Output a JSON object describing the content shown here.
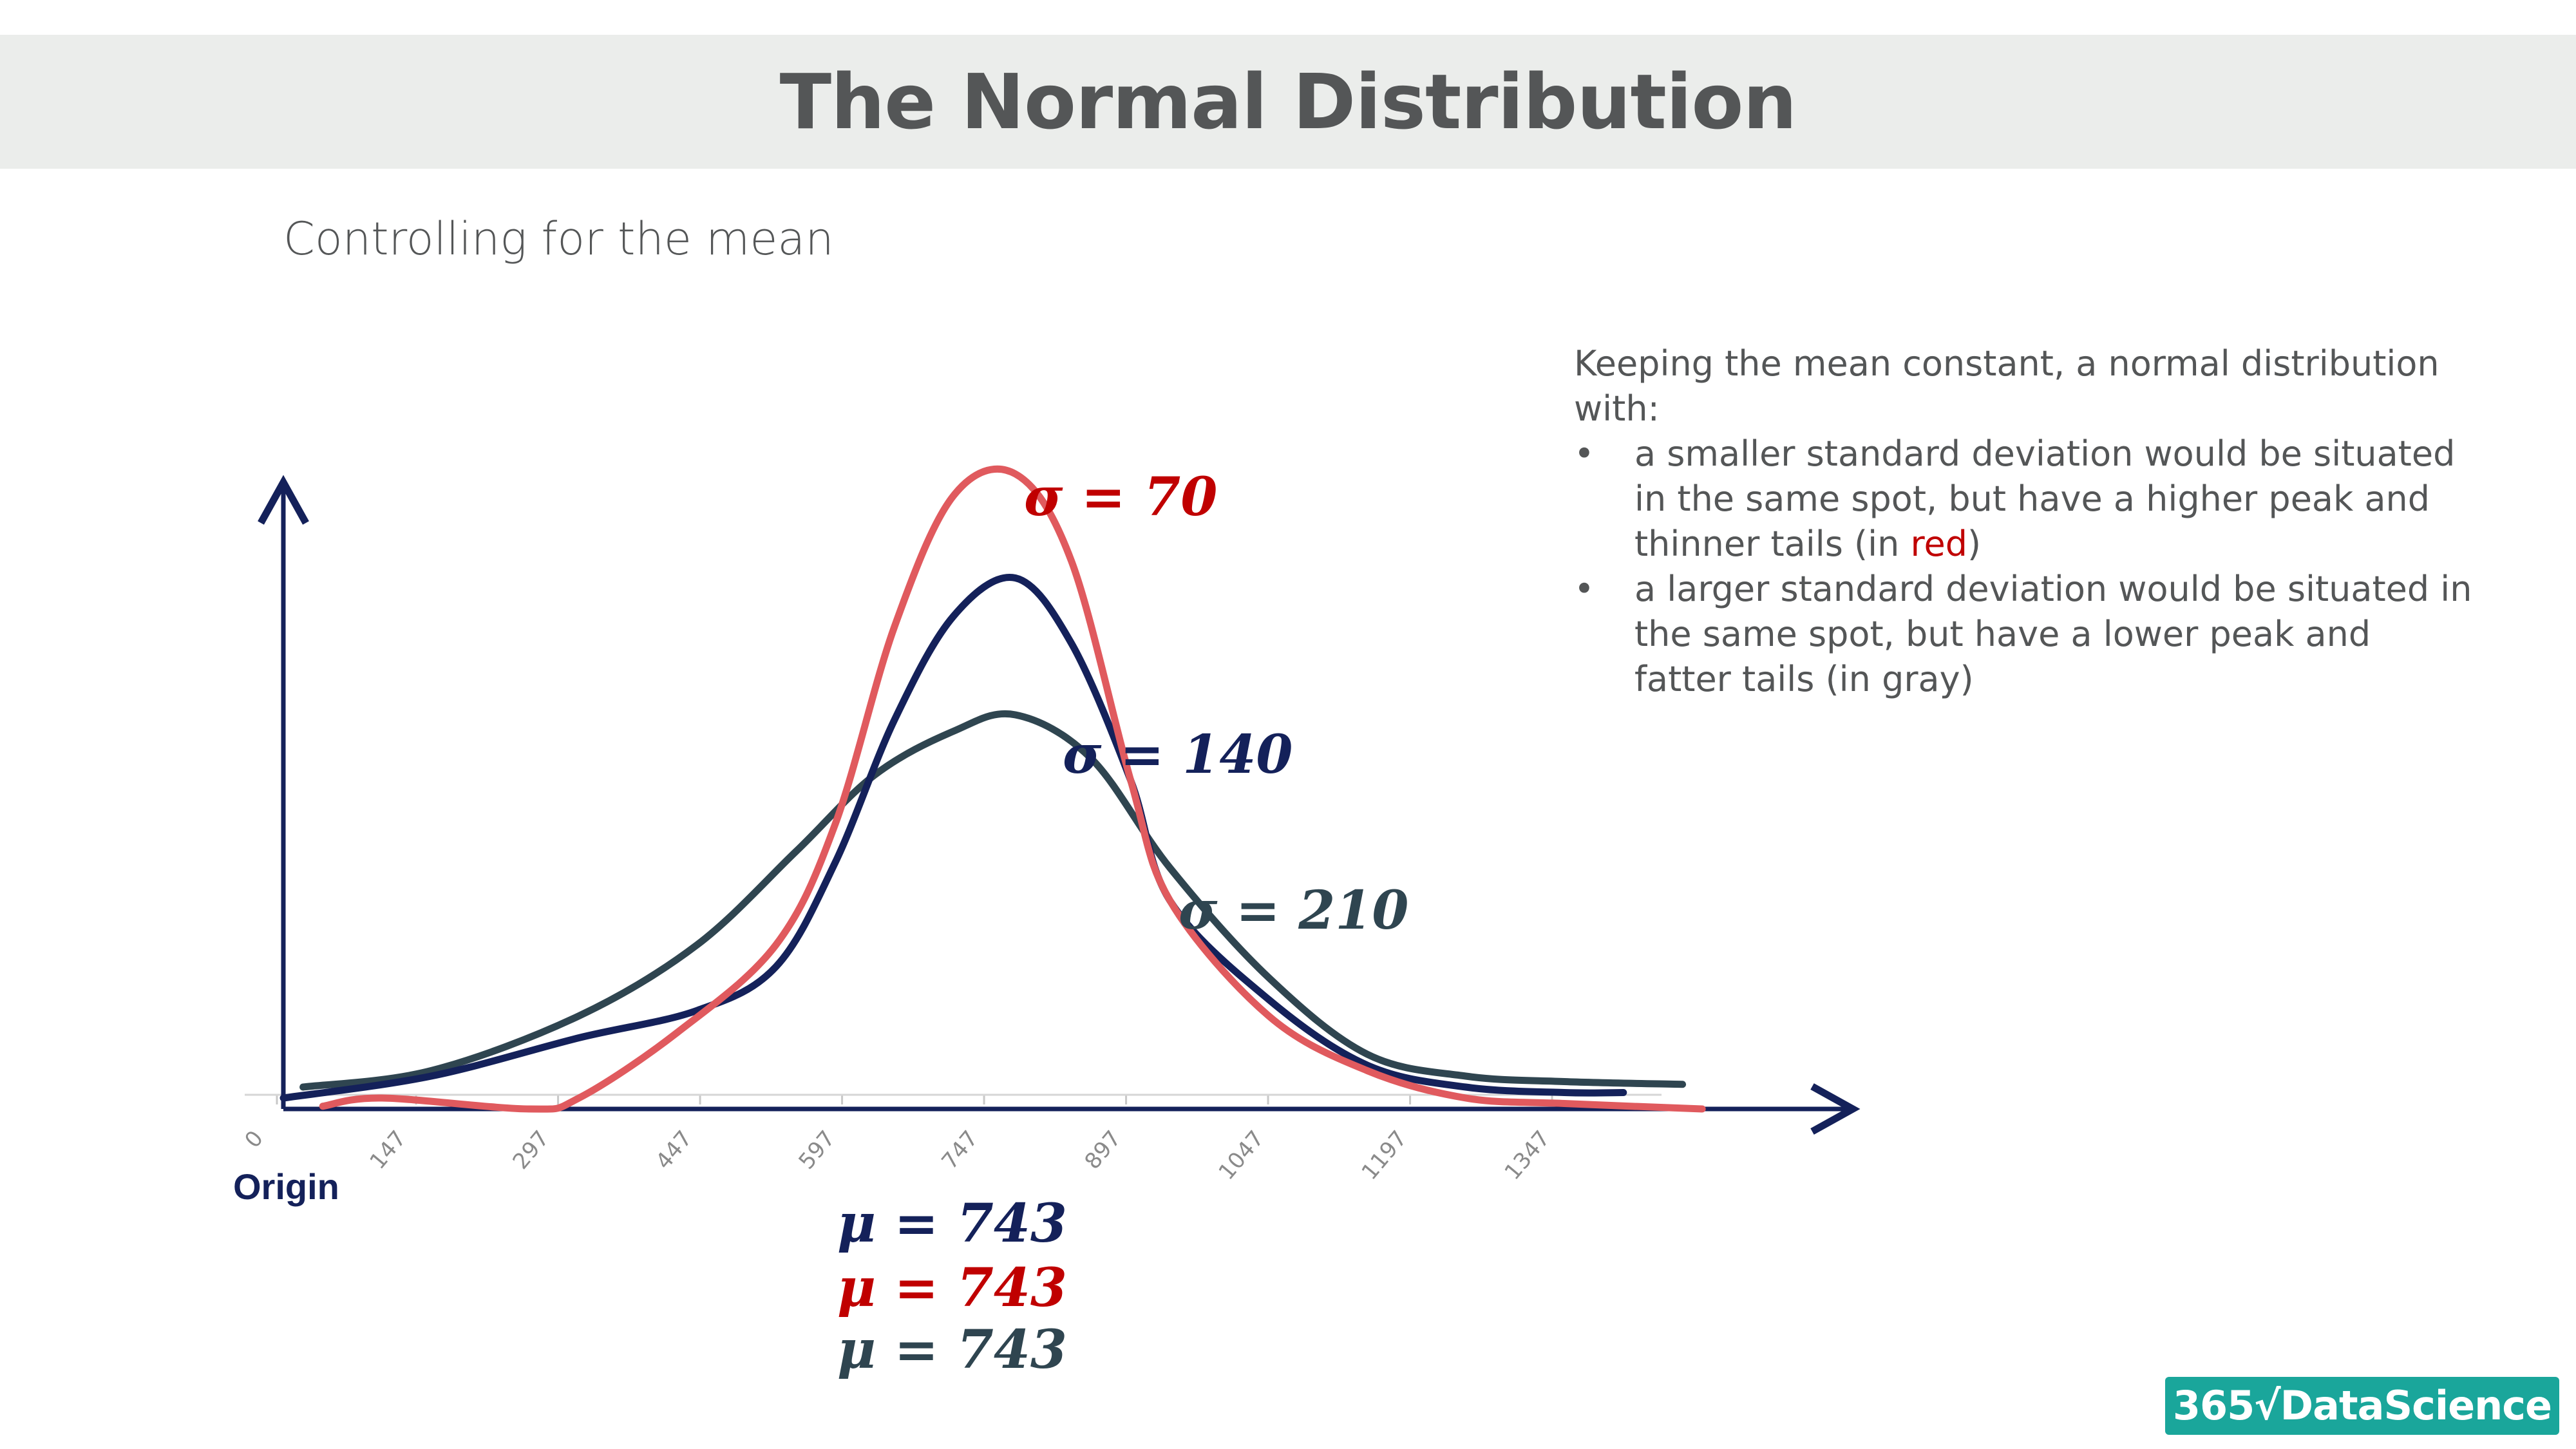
{
  "header": {
    "title": "The Normal Distribution"
  },
  "subtitle": "Controlling for the mean",
  "description": {
    "intro": "Keeping the mean constant, a normal distribution with:",
    "bullet_symbol": "•",
    "bullets": [
      {
        "text": "a smaller standard deviation would be situated in the same spot, but have a higher peak and thinner tails (in ",
        "highlight": "red",
        "after": ")"
      },
      {
        "text": "a larger standard deviation would be situated in the same spot, but have a lower peak and fatter tails (in gray)"
      }
    ]
  },
  "chart_data": {
    "type": "line",
    "xlim": [
      0,
      1460
    ],
    "ylim": [
      0,
      1
    ],
    "x_ticks": [
      0,
      147,
      297,
      447,
      597,
      747,
      897,
      1047,
      1197,
      1347
    ],
    "x_tick_labels": [
      "0",
      "147",
      "297",
      "447",
      "597",
      "747",
      "897",
      "1047",
      "1197",
      "1347"
    ],
    "origin_label": "Origin",
    "series": [
      {
        "key": "gray",
        "name": "σ = 210",
        "label": "σ = 210",
        "mean_label": "μ = 743",
        "mean": 743,
        "sd": 210,
        "color": "#2f4550",
        "x": [
          20,
          150,
          300,
          420,
          520,
          600,
          680,
          743,
          820,
          900,
          1000,
          1100,
          1200,
          1300,
          1420
        ],
        "y": [
          0.04,
          0.07,
          0.17,
          0.3,
          0.47,
          0.61,
          0.69,
          0.72,
          0.64,
          0.44,
          0.24,
          0.1,
          0.06,
          0.05,
          0.045
        ]
      },
      {
        "key": "navy",
        "name": "σ = 140",
        "label": "σ = 140",
        "mean_label": "μ = 743",
        "mean": 743,
        "sd": 140,
        "color": "#14215a",
        "x": [
          0,
          150,
          300,
          420,
          500,
          560,
          620,
          680,
          743,
          800,
          860,
          900,
          1000,
          1100,
          1200,
          1300,
          1360
        ],
        "y": [
          0.02,
          0.06,
          0.13,
          0.18,
          0.26,
          0.45,
          0.71,
          0.9,
          0.97,
          0.85,
          0.6,
          0.38,
          0.2,
          0.08,
          0.04,
          0.03,
          0.03
        ]
      },
      {
        "key": "red",
        "name": "σ = 70",
        "label": "σ = 70",
        "mean_label": "μ = 743",
        "mean": 743,
        "sd": 70,
        "color": "#e05a5e",
        "x": [
          40,
          100,
          250,
          300,
          400,
          500,
          560,
          620,
          680,
          743,
          800,
          860,
          900,
          1000,
          1100,
          1200,
          1300,
          1440
        ],
        "y": [
          0.005,
          0.02,
          0.0,
          0.02,
          0.14,
          0.3,
          0.52,
          0.88,
          1.12,
          1.16,
          1.0,
          0.6,
          0.38,
          0.17,
          0.07,
          0.02,
          0.01,
          0.0
        ]
      }
    ]
  },
  "logo": {
    "text": "365√DataScience"
  },
  "colors": {
    "title_bar": "#ebedeb",
    "text_gray": "#545657",
    "red": "#c00000",
    "navy": "#14215a",
    "gray": "#2f4550",
    "logo_bg": "#1aa69b"
  }
}
